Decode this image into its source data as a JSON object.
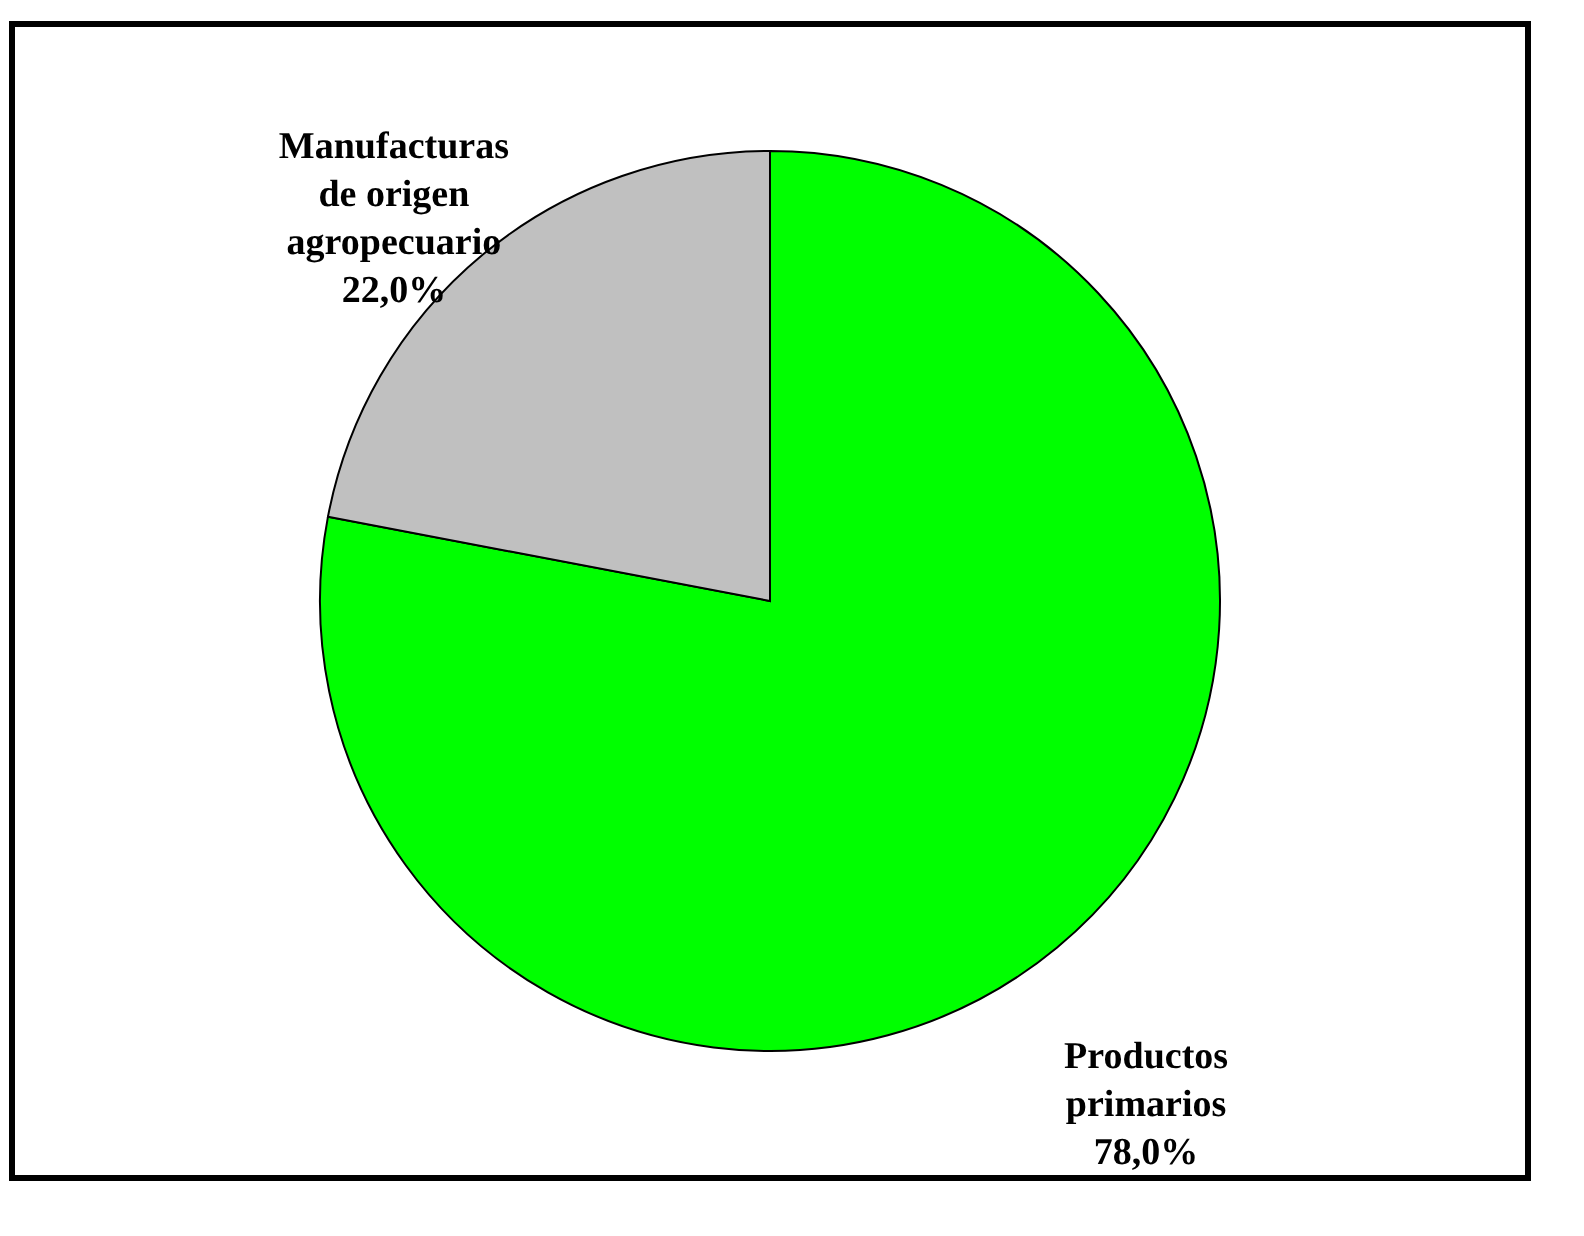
{
  "chart_data": {
    "type": "pie",
    "categories": [
      "Productos primarios",
      "Manufacturas de origen agropecuario"
    ],
    "values": [
      78.0,
      22.0
    ],
    "colors": [
      "#00ff00",
      "#c0c0c0"
    ],
    "value_labels": [
      "78,0%",
      "22,0%"
    ],
    "legend": false
  }
}
